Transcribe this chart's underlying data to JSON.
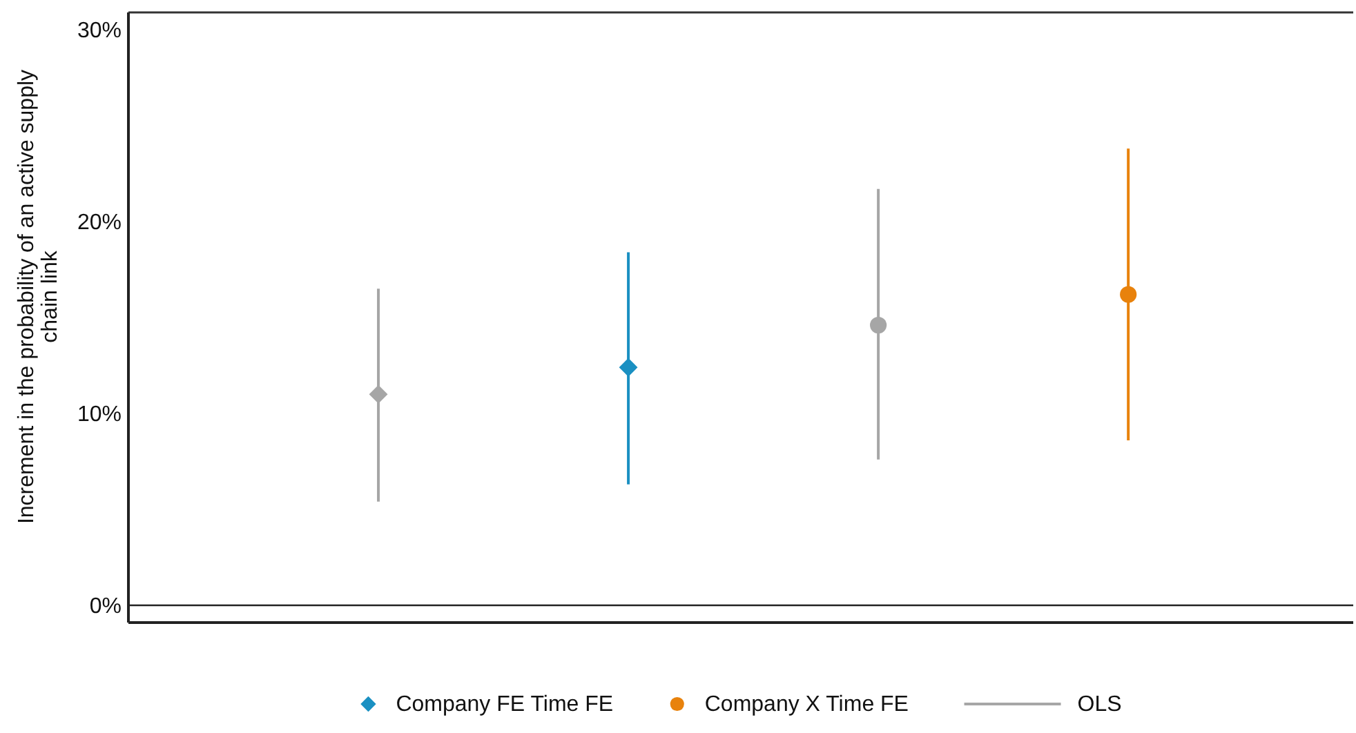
{
  "chart_data": {
    "type": "scatter",
    "ylabel": "Increment in the probability of an active supply chain link",
    "categories": [
      null,
      null,
      null,
      null
    ],
    "series": [
      {
        "name": "Company FE Time FE",
        "color": "#1a90c2",
        "marker": "diamond",
        "values": [
          null,
          12.4,
          null,
          null
        ],
        "errors": [
          null,
          [
            6.3,
            18.4
          ],
          null,
          null
        ]
      },
      {
        "name": "Company X Time FE",
        "color": "#e8820c",
        "marker": "circle",
        "values": [
          null,
          null,
          null,
          16.2
        ],
        "errors": [
          null,
          null,
          null,
          [
            8.6,
            23.8
          ]
        ]
      },
      {
        "name": "OLS",
        "color": "#a6a6a6",
        "marker": "diamond",
        "values": [
          11.0,
          null,
          null,
          null
        ],
        "errors": [
          [
            5.4,
            16.5
          ],
          null,
          null,
          null
        ]
      },
      {
        "color": "#a6a6a6",
        "marker": "circle",
        "values": [
          null,
          null,
          14.6,
          null
        ],
        "errors": [
          null,
          null,
          [
            7.6,
            21.7
          ],
          null
        ]
      }
    ],
    "ylim": [
      -0.9,
      30.9
    ],
    "yticks": [
      {
        "value": 0,
        "label": "0%"
      },
      {
        "value": 10,
        "label": "10%"
      },
      {
        "value": 20,
        "label": "20%"
      },
      {
        "value": 30,
        "label": "30%"
      }
    ],
    "ref_lines": [
      {
        "axis": "y",
        "value": 0,
        "color": "#222222"
      }
    ],
    "grid": false,
    "legend": "bottom"
  }
}
